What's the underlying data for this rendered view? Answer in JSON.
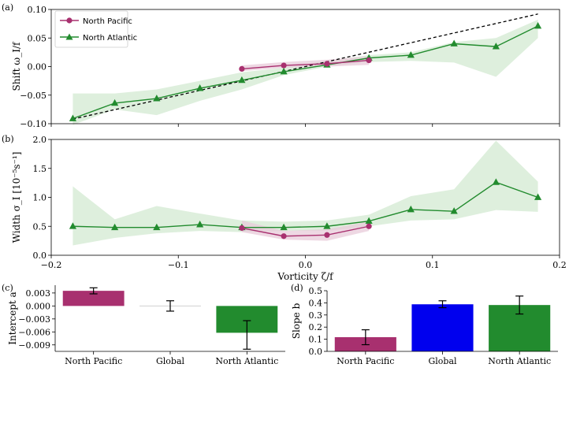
{
  "colors": {
    "north_pacific": "#a8306f",
    "north_atlantic": "#228b2e",
    "global": "#0000ee",
    "fill_pacific": "#e8cbd9",
    "fill_atlantic": "#d8ecd7"
  },
  "chart_data": [
    {
      "panel": "(a)",
      "type": "line",
      "ylabel": "Shift ω_I/f",
      "xlim": [
        -0.2,
        0.2
      ],
      "ylim": [
        -0.1,
        0.1
      ],
      "x_ticks": [
        -0.2,
        -0.1,
        0.0,
        0.1,
        0.2
      ],
      "y_ticks": [
        -0.1,
        -0.05,
        0.0,
        0.05,
        0.1
      ],
      "y_tick_labels": [
        "−0.10",
        "−0.05",
        "0.00",
        "0.05",
        "0.10"
      ],
      "legend": {
        "position": "top-left",
        "entries": [
          "North Pacific",
          "North Atlantic"
        ]
      },
      "reference_line": {
        "style": "dashed",
        "x": [
          -0.183,
          0.183
        ],
        "y": [
          -0.092,
          0.092
        ]
      },
      "series": [
        {
          "name": "North Pacific",
          "marker": "circle",
          "x": [
            -0.05,
            -0.017,
            0.017,
            0.05
          ],
          "y": [
            -0.004,
            0.002,
            0.005,
            0.011
          ],
          "band_low": [
            -0.008,
            -0.002,
            0.0,
            0.003
          ],
          "band_high": [
            0.002,
            0.008,
            0.012,
            0.018
          ]
        },
        {
          "name": "North Atlantic",
          "marker": "triangle",
          "x": [
            -0.183,
            -0.15,
            -0.117,
            -0.083,
            -0.05,
            -0.017,
            0.017,
            0.05,
            0.083,
            0.117,
            0.15,
            0.183
          ],
          "y": [
            -0.091,
            -0.064,
            -0.056,
            -0.038,
            -0.024,
            -0.009,
            0.003,
            0.015,
            0.02,
            0.04,
            0.035,
            0.071
          ],
          "band_low": [
            -0.102,
            -0.075,
            -0.085,
            -0.06,
            -0.04,
            -0.015,
            0.0,
            0.008,
            0.01,
            0.007,
            -0.018,
            0.05
          ],
          "band_high": [
            -0.047,
            -0.047,
            -0.04,
            -0.025,
            -0.01,
            -0.002,
            0.01,
            0.02,
            0.025,
            0.043,
            0.05,
            0.082
          ]
        }
      ]
    },
    {
      "panel": "(b)",
      "type": "line",
      "xlabel": "Vorticity ζ/f",
      "ylabel": "Width σ_I [10⁻⁵s⁻¹]",
      "xlim": [
        -0.2,
        0.2
      ],
      "ylim": [
        0.0,
        2.0
      ],
      "x_ticks": [
        -0.2,
        -0.1,
        0.0,
        0.1,
        0.2
      ],
      "x_tick_labels": [
        "−0.2",
        "−0.1",
        "0.0",
        "0.1",
        "0.2"
      ],
      "y_ticks": [
        0.0,
        0.5,
        1.0,
        1.5,
        2.0
      ],
      "y_tick_labels": [
        "0.0",
        "0.5",
        "1.0",
        "1.5",
        "2.0"
      ],
      "series": [
        {
          "name": "North Pacific",
          "marker": "circle",
          "x": [
            -0.05,
            -0.017,
            0.017,
            0.05
          ],
          "y": [
            0.47,
            0.33,
            0.35,
            0.5
          ],
          "band_low": [
            0.4,
            0.27,
            0.25,
            0.42
          ],
          "band_high": [
            0.6,
            0.42,
            0.45,
            0.58
          ]
        },
        {
          "name": "North Atlantic",
          "marker": "triangle",
          "x": [
            -0.183,
            -0.15,
            -0.117,
            -0.083,
            -0.05,
            -0.017,
            0.017,
            0.05,
            0.083,
            0.117,
            0.15,
            0.183
          ],
          "y": [
            0.5,
            0.48,
            0.48,
            0.53,
            0.48,
            0.48,
            0.5,
            0.59,
            0.79,
            0.76,
            1.26,
            1.0
          ],
          "band_low": [
            0.17,
            0.3,
            0.38,
            0.42,
            0.4,
            0.42,
            0.42,
            0.5,
            0.6,
            0.62,
            0.78,
            0.75
          ],
          "band_high": [
            1.19,
            0.62,
            0.85,
            0.72,
            0.6,
            0.58,
            0.6,
            0.7,
            1.02,
            1.14,
            1.98,
            1.27
          ]
        }
      ]
    },
    {
      "panel": "(c)",
      "type": "bar",
      "ylabel": "Intercept a",
      "ylim": [
        -0.0105,
        0.0048
      ],
      "y_ticks": [
        -0.009,
        -0.006,
        -0.003,
        0.0,
        0.003
      ],
      "y_tick_labels": [
        "−0.009",
        "−0.006",
        "−0.003",
        "0.000",
        "0.003"
      ],
      "categories": [
        "North Pacific",
        "Global",
        "North Atlantic"
      ],
      "values": [
        0.0035,
        0.0,
        -0.0062
      ],
      "error_low": [
        0.0028,
        -0.0012,
        -0.01
      ],
      "error_high": [
        0.0042,
        0.0012,
        -0.0034
      ]
    },
    {
      "panel": "(d)",
      "type": "bar",
      "ylabel": "Slope b",
      "ylim": [
        0.0,
        0.5
      ],
      "y_ticks": [
        0.0,
        0.1,
        0.2,
        0.3,
        0.4,
        0.5
      ],
      "y_tick_labels": [
        "0.0",
        "0.1",
        "0.2",
        "0.3",
        "0.4",
        "0.5"
      ],
      "categories": [
        "North Pacific",
        "Global",
        "North Atlantic"
      ],
      "values": [
        0.117,
        0.388,
        0.382
      ],
      "error_low": [
        0.055,
        0.36,
        0.308
      ],
      "error_high": [
        0.178,
        0.417,
        0.456
      ]
    }
  ]
}
